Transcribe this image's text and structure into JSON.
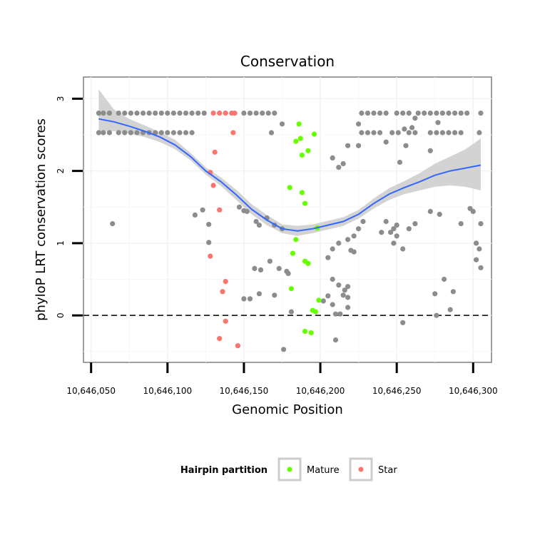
{
  "chart_data": {
    "type": "scatter",
    "title": "Conservation",
    "xlabel": "Genomic Position",
    "ylabel": "phyloP LRT conservation scores",
    "xlim": [
      10646045,
      10646312
    ],
    "ylim": [
      -0.65,
      3.3
    ],
    "x_ticks": [
      10646050,
      10646100,
      10646150,
      10646200,
      10646250,
      10646300
    ],
    "x_tick_labels": [
      "10,646,050",
      "10,646,100",
      "10,646,150",
      "10,646,200",
      "10,646,250",
      "10,646,300"
    ],
    "y_ticks": [
      0,
      1,
      2,
      3
    ],
    "y_tick_labels": [
      "0",
      "1",
      "2",
      "3"
    ],
    "grid": true,
    "reference_line": {
      "y": 0,
      "style": "dashed",
      "color": "#000000"
    },
    "legend": {
      "title": "Hairpin partition",
      "position": "bottom",
      "entries": [
        {
          "label": "Mature",
          "color": "#66ff00"
        },
        {
          "label": "Star",
          "color": "#f8766d"
        }
      ]
    },
    "colors": {
      "other": "#8c8c8c",
      "mature": "#66ff00",
      "star": "#f8766d",
      "smooth": "#3366ff",
      "ribbon": "#d3d3d3"
    },
    "series": [
      {
        "name": "Other",
        "color": "#8c8c8c",
        "points": [
          [
            10646055,
            2.8
          ],
          [
            10646058,
            2.8
          ],
          [
            10646062,
            2.8
          ],
          [
            10646068,
            2.8
          ],
          [
            10646072,
            2.8
          ],
          [
            10646076,
            2.8
          ],
          [
            10646080,
            2.8
          ],
          [
            10646084,
            2.8
          ],
          [
            10646088,
            2.8
          ],
          [
            10646092,
            2.8
          ],
          [
            10646096,
            2.8
          ],
          [
            10646100,
            2.8
          ],
          [
            10646104,
            2.8
          ],
          [
            10646108,
            2.8
          ],
          [
            10646112,
            2.8
          ],
          [
            10646116,
            2.8
          ],
          [
            10646120,
            2.8
          ],
          [
            10646124,
            2.8
          ],
          [
            10646055,
            2.53
          ],
          [
            10646058,
            2.53
          ],
          [
            10646062,
            2.53
          ],
          [
            10646068,
            2.53
          ],
          [
            10646072,
            2.53
          ],
          [
            10646076,
            2.53
          ],
          [
            10646080,
            2.53
          ],
          [
            10646084,
            2.53
          ],
          [
            10646088,
            2.53
          ],
          [
            10646092,
            2.53
          ],
          [
            10646096,
            2.53
          ],
          [
            10646100,
            2.53
          ],
          [
            10646104,
            2.53
          ],
          [
            10646108,
            2.53
          ],
          [
            10646112,
            2.53
          ],
          [
            10646116,
            2.53
          ],
          [
            10646064,
            1.27
          ],
          [
            10646118,
            1.39
          ],
          [
            10646123,
            1.46
          ],
          [
            10646127,
            1.26
          ],
          [
            10646127,
            1.01
          ],
          [
            10646150,
            2.8
          ],
          [
            10646154,
            2.8
          ],
          [
            10646158,
            2.8
          ],
          [
            10646162,
            2.8
          ],
          [
            10646166,
            2.8
          ],
          [
            10646170,
            2.8
          ],
          [
            10646175,
            2.65
          ],
          [
            10646168,
            2.53
          ],
          [
            10646147,
            1.5
          ],
          [
            10646150,
            1.45
          ],
          [
            10646152,
            1.44
          ],
          [
            10646158,
            1.3
          ],
          [
            10646160,
            1.25
          ],
          [
            10646165,
            1.35
          ],
          [
            10646170,
            1.25
          ],
          [
            10646175,
            1.2
          ],
          [
            10646157,
            0.65
          ],
          [
            10646161,
            0.63
          ],
          [
            10646167,
            0.75
          ],
          [
            10646173,
            0.65
          ],
          [
            10646178,
            0.61
          ],
          [
            10646179,
            0.58
          ],
          [
            10646150,
            0.23
          ],
          [
            10646154,
            0.23
          ],
          [
            10646160,
            0.3
          ],
          [
            10646170,
            0.28
          ],
          [
            10646181,
            0.05
          ],
          [
            10646176,
            -0.47
          ],
          [
            10646205,
            0.8
          ],
          [
            10646208,
            0.92
          ],
          [
            10646212,
            1.0
          ],
          [
            10646208,
            0.5
          ],
          [
            10646202,
            0.2
          ],
          [
            10646205,
            0.27
          ],
          [
            10646208,
            0.15
          ],
          [
            10646212,
            0.42
          ],
          [
            10646216,
            0.35
          ],
          [
            10646218,
            0.4
          ],
          [
            10646215,
            0.28
          ],
          [
            10646218,
            0.25
          ],
          [
            10646210,
            0.02
          ],
          [
            10646213,
            0.02
          ],
          [
            10646218,
            0.11
          ],
          [
            10646210,
            -0.34
          ],
          [
            10646208,
            2.18
          ],
          [
            10646212,
            2.05
          ],
          [
            10646215,
            2.1
          ],
          [
            10646218,
            2.35
          ],
          [
            10646225,
            2.35
          ],
          [
            10646218,
            1.05
          ],
          [
            10646220,
            0.9
          ],
          [
            10646222,
            1.1
          ],
          [
            10646225,
            1.2
          ],
          [
            10646228,
            1.3
          ],
          [
            10646222,
            0.88
          ],
          [
            10646225,
            2.65
          ],
          [
            10646227,
            2.8
          ],
          [
            10646231,
            2.8
          ],
          [
            10646235,
            2.8
          ],
          [
            10646239,
            2.8
          ],
          [
            10646243,
            2.8
          ],
          [
            10646250,
            2.8
          ],
          [
            10646254,
            2.8
          ],
          [
            10646258,
            2.8
          ],
          [
            10646264,
            2.8
          ],
          [
            10646268,
            2.8
          ],
          [
            10646272,
            2.8
          ],
          [
            10646276,
            2.8
          ],
          [
            10646280,
            2.8
          ],
          [
            10646284,
            2.8
          ],
          [
            10646288,
            2.8
          ],
          [
            10646292,
            2.8
          ],
          [
            10646296,
            2.8
          ],
          [
            10646305,
            2.8
          ],
          [
            10646227,
            2.53
          ],
          [
            10646231,
            2.53
          ],
          [
            10646235,
            2.53
          ],
          [
            10646239,
            2.53
          ],
          [
            10646247,
            2.53
          ],
          [
            10646251,
            2.53
          ],
          [
            10646258,
            2.53
          ],
          [
            10646262,
            2.53
          ],
          [
            10646272,
            2.53
          ],
          [
            10646276,
            2.53
          ],
          [
            10646280,
            2.53
          ],
          [
            10646284,
            2.53
          ],
          [
            10646288,
            2.53
          ],
          [
            10646292,
            2.53
          ],
          [
            10646304,
            2.53
          ],
          [
            10646243,
            2.4
          ],
          [
            10646252,
            2.12
          ],
          [
            10646256,
            2.35
          ],
          [
            10646260,
            2.6
          ],
          [
            10646262,
            2.73
          ],
          [
            10646255,
            2.58
          ],
          [
            10646272,
            2.28
          ],
          [
            10646277,
            2.67
          ],
          [
            10646240,
            1.15
          ],
          [
            10646243,
            1.3
          ],
          [
            10646246,
            1.15
          ],
          [
            10646248,
            1.2
          ],
          [
            10646250,
            1.1
          ],
          [
            10646254,
            0.92
          ],
          [
            10646258,
            1.2
          ],
          [
            10646262,
            1.27
          ],
          [
            10646250,
            1.25
          ],
          [
            10646248,
            1.0
          ],
          [
            10646272,
            1.44
          ],
          [
            10646278,
            1.4
          ],
          [
            10646292,
            1.27
          ],
          [
            10646298,
            1.48
          ],
          [
            10646300,
            1.44
          ],
          [
            10646302,
            1.0
          ],
          [
            10646302,
            0.77
          ],
          [
            10646304,
            0.92
          ],
          [
            10646305,
            0.66
          ],
          [
            10646305,
            1.27
          ],
          [
            10646281,
            0.5
          ],
          [
            10646275,
            0.3
          ],
          [
            10646276,
            0.0
          ],
          [
            10646285,
            0.08
          ],
          [
            10646287,
            0.33
          ],
          [
            10646254,
            -0.1
          ]
        ]
      },
      {
        "name": "Mature",
        "color": "#66ff00",
        "points": [
          [
            10646186,
            2.65
          ],
          [
            10646187,
            2.45
          ],
          [
            10646184,
            2.41
          ],
          [
            10646188,
            2.22
          ],
          [
            10646192,
            2.28
          ],
          [
            10646196,
            2.51
          ],
          [
            10646180,
            1.77
          ],
          [
            10646188,
            1.7
          ],
          [
            10646190,
            1.55
          ],
          [
            10646198,
            1.21
          ],
          [
            10646184,
            1.05
          ],
          [
            10646182,
            0.86
          ],
          [
            10646190,
            0.75
          ],
          [
            10646192,
            0.72
          ],
          [
            10646181,
            0.37
          ],
          [
            10646199,
            0.21
          ],
          [
            10646195,
            0.07
          ],
          [
            10646197,
            0.05
          ],
          [
            10646190,
            -0.22
          ],
          [
            10646194,
            -0.24
          ]
        ]
      },
      {
        "name": "Star",
        "color": "#f8766d",
        "points": [
          [
            10646130,
            2.8
          ],
          [
            10646134,
            2.8
          ],
          [
            10646138,
            2.8
          ],
          [
            10646142,
            2.8
          ],
          [
            10646144,
            2.8
          ],
          [
            10646143,
            2.53
          ],
          [
            10646131,
            2.26
          ],
          [
            10646128,
            1.98
          ],
          [
            10646130,
            1.8
          ],
          [
            10646134,
            1.46
          ],
          [
            10646128,
            0.82
          ],
          [
            10646138,
            0.47
          ],
          [
            10646136,
            0.33
          ],
          [
            10646138,
            -0.08
          ],
          [
            10646134,
            -0.32
          ],
          [
            10646146,
            -0.42
          ]
        ]
      }
    ],
    "smooth": {
      "x": [
        10646055,
        10646065,
        10646075,
        10646085,
        10646095,
        10646105,
        10646115,
        10646125,
        10646135,
        10646145,
        10646155,
        10646165,
        10646175,
        10646185,
        10646195,
        10646205,
        10646215,
        10646225,
        10646235,
        10646245,
        10646255,
        10646265,
        10646275,
        10646285,
        10646295,
        10646305
      ],
      "y": [
        2.72,
        2.68,
        2.62,
        2.55,
        2.47,
        2.36,
        2.2,
        2.0,
        1.85,
        1.67,
        1.47,
        1.32,
        1.2,
        1.17,
        1.2,
        1.25,
        1.3,
        1.4,
        1.55,
        1.68,
        1.77,
        1.85,
        1.94,
        2.0,
        2.04,
        2.08
      ],
      "lower": [
        2.55,
        2.55,
        2.52,
        2.47,
        2.4,
        2.3,
        2.15,
        1.95,
        1.79,
        1.6,
        1.4,
        1.25,
        1.14,
        1.1,
        1.14,
        1.19,
        1.24,
        1.34,
        1.48,
        1.6,
        1.68,
        1.73,
        1.78,
        1.8,
        1.78,
        1.73
      ],
      "upper": [
        3.13,
        2.85,
        2.72,
        2.63,
        2.54,
        2.43,
        2.25,
        2.05,
        1.91,
        1.74,
        1.54,
        1.39,
        1.26,
        1.24,
        1.26,
        1.31,
        1.36,
        1.46,
        1.62,
        1.76,
        1.86,
        1.97,
        2.1,
        2.2,
        2.3,
        2.45
      ]
    }
  }
}
